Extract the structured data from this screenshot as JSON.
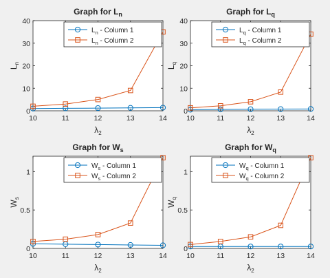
{
  "colors": {
    "figure_bg": "#f0f0f0",
    "axes_bg": "#ffffff",
    "axis": "#262626",
    "series_1": "#0072bd",
    "series_2": "#d95319"
  },
  "chart_data": [
    {
      "type": "line",
      "title": "Graph for L",
      "title_sub": "n",
      "xlabel": "λ",
      "xlabel_sub": "2",
      "ylabel": "L",
      "ylabel_sub": "n",
      "x": [
        10,
        11,
        12,
        13,
        14
      ],
      "xlim": [
        10,
        14
      ],
      "ylim": [
        0,
        40
      ],
      "xticks": [
        "10",
        "11",
        "12",
        "13",
        "14"
      ],
      "yticks": [
        0,
        10,
        20,
        30,
        40
      ],
      "yticklabels": [
        "0",
        "10",
        "20",
        "30",
        "40"
      ],
      "grid": false,
      "legend_position": "top-right",
      "series": [
        {
          "name_main": "L",
          "name_sub": "n",
          "name_rest": " - Column 1",
          "marker": "circle",
          "values": [
            1.0,
            1.1,
            1.2,
            1.3,
            1.4
          ]
        },
        {
          "name_main": "L",
          "name_sub": "n",
          "name_rest": " - Column 2",
          "marker": "square",
          "values": [
            2.0,
            3.0,
            5.0,
            9.0,
            35.0
          ]
        }
      ]
    },
    {
      "type": "line",
      "title": "Graph for L",
      "title_sub": "q",
      "xlabel": "λ",
      "xlabel_sub": "2",
      "ylabel": "L",
      "ylabel_sub": "q",
      "x": [
        10,
        11,
        12,
        13,
        14
      ],
      "xlim": [
        10,
        14
      ],
      "ylim": [
        0,
        40
      ],
      "xticks": [
        "10",
        "11",
        "12",
        "13",
        "14"
      ],
      "yticks": [
        0,
        10,
        20,
        30,
        40
      ],
      "yticklabels": [
        "0",
        "10",
        "20",
        "30",
        "40"
      ],
      "grid": false,
      "legend_position": "top-right",
      "series": [
        {
          "name_main": "L",
          "name_sub": "q",
          "name_rest": " - Column 1",
          "marker": "circle",
          "values": [
            0.5,
            0.6,
            0.7,
            0.75,
            0.8
          ]
        },
        {
          "name_main": "L",
          "name_sub": "q",
          "name_rest": " - Column 2",
          "marker": "square",
          "values": [
            1.3,
            2.2,
            4.0,
            8.3,
            34.0
          ]
        }
      ]
    },
    {
      "type": "line",
      "title": "Graph for W",
      "title_sub": "s",
      "xlabel": "λ",
      "xlabel_sub": "2",
      "ylabel": "W",
      "ylabel_sub": "s",
      "x": [
        10,
        11,
        12,
        13,
        14
      ],
      "xlim": [
        10,
        14
      ],
      "ylim": [
        0,
        1.2
      ],
      "xticks": [
        "10",
        "11",
        "12",
        "13",
        "14"
      ],
      "yticks": [
        0,
        0.5,
        1
      ],
      "yticklabels": [
        "0",
        "0.5",
        "1"
      ],
      "grid": false,
      "legend_position": "top-right",
      "series": [
        {
          "name_main": "W",
          "name_sub": "s",
          "name_rest": " - Column 1",
          "marker": "circle",
          "values": [
            0.06,
            0.055,
            0.05,
            0.045,
            0.04
          ]
        },
        {
          "name_main": "W",
          "name_sub": "s",
          "name_rest": " - Column 2",
          "marker": "square",
          "values": [
            0.09,
            0.12,
            0.18,
            0.33,
            1.18
          ]
        }
      ]
    },
    {
      "type": "line",
      "title": "Graph for W",
      "title_sub": "q",
      "xlabel": "λ",
      "xlabel_sub": "2",
      "ylabel": "W",
      "ylabel_sub": "q",
      "x": [
        10,
        11,
        12,
        13,
        14
      ],
      "xlim": [
        10,
        14
      ],
      "ylim": [
        0,
        1.2
      ],
      "xticks": [
        "10",
        "11",
        "12",
        "13",
        "14"
      ],
      "yticks": [
        0,
        0.5,
        1
      ],
      "yticklabels": [
        "0",
        "0.5",
        "1"
      ],
      "grid": false,
      "legend_position": "top-right",
      "series": [
        {
          "name_main": "W",
          "name_sub": "q",
          "name_rest": " - Column 1",
          "marker": "circle",
          "values": [
            0.025,
            0.025,
            0.025,
            0.025,
            0.025
          ]
        },
        {
          "name_main": "W",
          "name_sub": "q",
          "name_rest": " - Column 2",
          "marker": "square",
          "values": [
            0.05,
            0.09,
            0.15,
            0.3,
            1.18
          ]
        }
      ]
    }
  ]
}
